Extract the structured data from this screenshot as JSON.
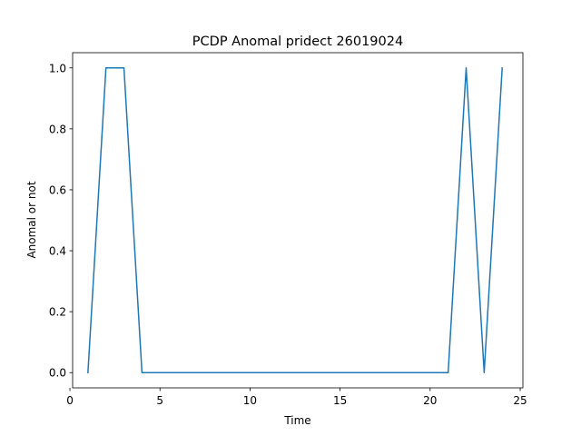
{
  "chart_data": {
    "type": "line",
    "title": "PCDP Anomal pridect 26019024",
    "xlabel": "Time",
    "ylabel": "Anomal or not",
    "xlim": [
      0.15,
      25.15
    ],
    "ylim": [
      -0.05,
      1.05
    ],
    "xticks": [
      0,
      5,
      10,
      15,
      20,
      25
    ],
    "xtick_labels": [
      "0",
      "5",
      "10",
      "15",
      "20",
      "25"
    ],
    "yticks": [
      0.0,
      0.2,
      0.4,
      0.6,
      0.8,
      1.0
    ],
    "ytick_labels": [
      "0.0",
      "0.2",
      "0.4",
      "0.6",
      "0.8",
      "1.0"
    ],
    "grid": false,
    "legend": "none",
    "series": [
      {
        "color": "#1f77b4",
        "x": [
          1,
          2,
          3,
          4,
          5,
          6,
          7,
          8,
          9,
          10,
          11,
          12,
          13,
          14,
          15,
          16,
          17,
          18,
          19,
          20,
          21,
          22,
          23,
          24
        ],
        "y": [
          0,
          1,
          1,
          0,
          0,
          0,
          0,
          0,
          0,
          0,
          0,
          0,
          0,
          0,
          0,
          0,
          0,
          0,
          0,
          0,
          0,
          1,
          0,
          1
        ]
      }
    ]
  }
}
